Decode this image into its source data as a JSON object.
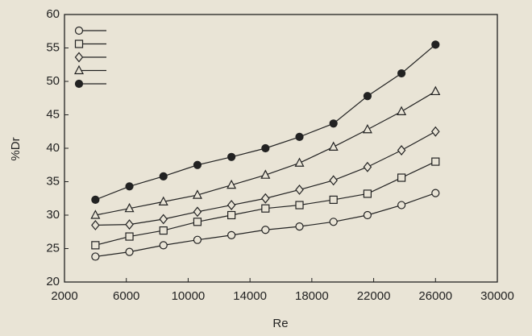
{
  "chart_data": {
    "type": "line",
    "x_label": "Re",
    "y_label": "%Dr",
    "x": [
      4000,
      6200,
      8400,
      10600,
      12800,
      15000,
      17200,
      19400,
      21600,
      23800,
      26000
    ],
    "series": [
      {
        "marker": "circle-open",
        "color": "#222",
        "values": [
          23.8,
          24.5,
          25.5,
          26.3,
          27,
          27.8,
          28.3,
          29,
          30,
          31.5,
          33.3
        ]
      },
      {
        "marker": "square-open",
        "color": "#222",
        "values": [
          25.5,
          26.8,
          27.7,
          29,
          30,
          31,
          31.5,
          32.3,
          33.2,
          35.6,
          38
        ]
      },
      {
        "marker": "diamond-open",
        "color": "#222",
        "values": [
          28.5,
          28.6,
          29.4,
          30.5,
          31.5,
          32.5,
          33.8,
          35.2,
          37.2,
          39.7,
          42.5
        ]
      },
      {
        "marker": "triangle-open",
        "color": "#222",
        "values": [
          30,
          31,
          32,
          33,
          34.5,
          36,
          37.8,
          40.2,
          42.8,
          45.5,
          48.5
        ]
      },
      {
        "marker": "circle-filled",
        "color": "#222",
        "values": [
          32.3,
          34.3,
          35.8,
          37.5,
          38.7,
          40,
          41.7,
          43.7,
          47.8,
          51.2,
          55.5
        ]
      }
    ],
    "xlim": [
      2000,
      30000
    ],
    "xticks": [
      2000,
      6000,
      10000,
      14000,
      18000,
      22000,
      26000,
      30000
    ],
    "ylim": [
      20,
      60
    ],
    "yticks": [
      20,
      25,
      30,
      35,
      40,
      45,
      50,
      55,
      60
    ],
    "legend": "upper left",
    "grid": false
  }
}
